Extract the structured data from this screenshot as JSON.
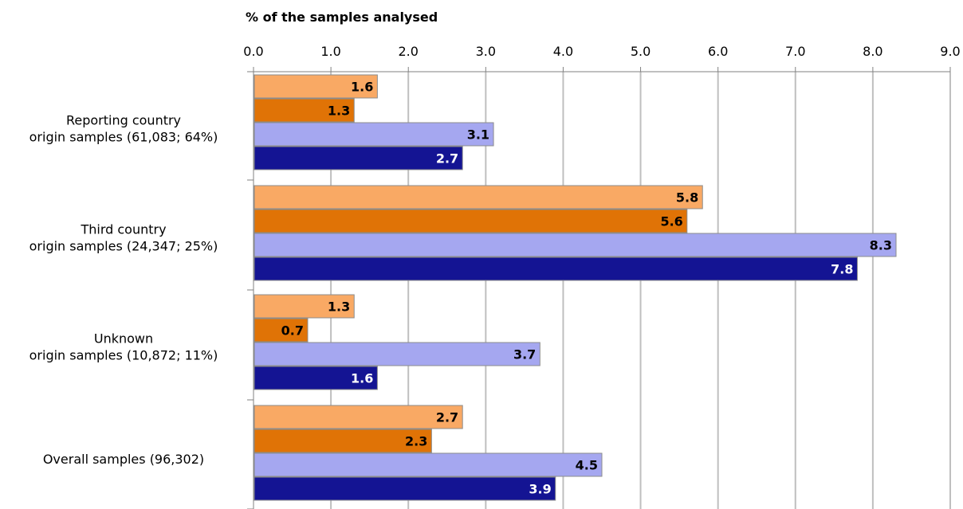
{
  "chart_data": {
    "type": "bar",
    "orientation": "horizontal",
    "title": "",
    "xlabel": "% of the samples analysed",
    "ylabel": "",
    "xlim": [
      0,
      9
    ],
    "x_ticks": [
      "0.0",
      "1.0",
      "2.0",
      "3.0",
      "4.0",
      "5.0",
      "6.0",
      "7.0",
      "8.0",
      "9.0"
    ],
    "grid": true,
    "legend": "none",
    "categories": [
      [
        "Reporting country",
        "origin samples (61,083; 64%)"
      ],
      [
        "Third country",
        "origin samples (24,347; 25%)"
      ],
      [
        "Unknown",
        "origin samples (10,872; 11%)"
      ],
      [
        "Overall samples (96,302)"
      ]
    ],
    "series": [
      {
        "values": [
          1.6,
          5.8,
          1.3,
          2.7
        ],
        "labels": [
          "1.6",
          "5.8",
          "1.3",
          "2.7"
        ],
        "color": "#F9A964",
        "label_color": "#000000"
      },
      {
        "values": [
          1.3,
          5.6,
          0.7,
          2.3
        ],
        "labels": [
          "1.3",
          "5.6",
          "0.7",
          "2.3"
        ],
        "color": "#E07306",
        "label_color": "#000000"
      },
      {
        "values": [
          3.1,
          8.3,
          3.7,
          4.5
        ],
        "labels": [
          "3.1",
          "8.3",
          "3.7",
          "4.5"
        ],
        "color": "#A5A7F0",
        "label_color": "#000000"
      },
      {
        "values": [
          2.7,
          7.8,
          1.6,
          3.9
        ],
        "labels": [
          "2.7",
          "7.8",
          "1.6",
          "3.9"
        ],
        "color": "#141493",
        "label_color": "#FFFFFF"
      }
    ]
  }
}
